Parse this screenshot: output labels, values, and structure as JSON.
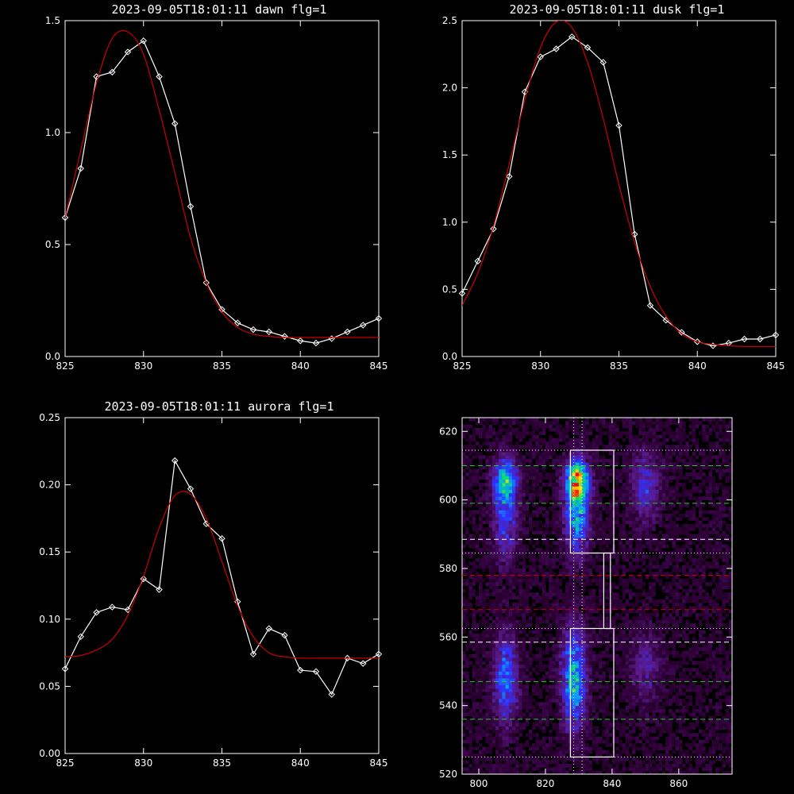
{
  "chart_data": [
    {
      "type": "line",
      "title": "2023-09-05T18:01:11 dawn flg=1",
      "xlim": [
        825,
        845
      ],
      "ylim": [
        0,
        1.5
      ],
      "xticks": [
        "825",
        "830",
        "835",
        "840",
        "845"
      ],
      "yticks": [
        "0.0",
        "0.5",
        "1.0",
        "1.5"
      ],
      "series": [
        {
          "role": "data",
          "color": "#ffffff",
          "marker": "diamond",
          "x": [
            825,
            826,
            827,
            828,
            829,
            830,
            831,
            832,
            833,
            834,
            835,
            836,
            837,
            838,
            839,
            840,
            841,
            842,
            843,
            844,
            845
          ],
          "y": [
            0.62,
            0.84,
            1.25,
            1.27,
            1.36,
            1.41,
            1.25,
            1.04,
            0.67,
            0.33,
            0.21,
            0.15,
            0.12,
            0.11,
            0.09,
            0.07,
            0.06,
            0.08,
            0.11,
            0.14,
            0.17
          ]
        },
        {
          "role": "fit",
          "color": "#cc0000",
          "x": [
            825,
            826,
            827,
            828,
            829,
            830,
            831,
            832,
            833,
            834,
            835,
            836,
            837,
            838,
            839,
            840,
            841,
            842,
            843,
            844,
            845
          ],
          "y": [
            0.62,
            0.92,
            1.22,
            1.42,
            1.45,
            1.35,
            1.1,
            0.82,
            0.53,
            0.33,
            0.2,
            0.13,
            0.1,
            0.09,
            0.085,
            0.085,
            0.085,
            0.085,
            0.085,
            0.085,
            0.085
          ]
        }
      ]
    },
    {
      "type": "line",
      "title": "2023-09-05T18:01:11 dusk flg=1",
      "xlim": [
        825,
        845
      ],
      "ylim": [
        0,
        2.5
      ],
      "xticks": [
        "825",
        "830",
        "835",
        "840",
        "845"
      ],
      "yticks": [
        "0.0",
        "0.5",
        "1.0",
        "1.5",
        "2.0",
        "2.5"
      ],
      "series": [
        {
          "role": "data",
          "color": "#ffffff",
          "marker": "diamond",
          "x": [
            825,
            826,
            827,
            828,
            829,
            830,
            831,
            832,
            833,
            834,
            835,
            836,
            837,
            838,
            839,
            840,
            841,
            842,
            843,
            844,
            845
          ],
          "y": [
            0.47,
            0.71,
            0.95,
            1.34,
            1.97,
            2.23,
            2.29,
            2.38,
            2.3,
            2.19,
            1.72,
            0.91,
            0.38,
            0.27,
            0.18,
            0.11,
            0.08,
            0.1,
            0.13,
            0.13,
            0.16
          ]
        },
        {
          "role": "fit",
          "color": "#cc0000",
          "x": [
            825,
            826,
            827,
            828,
            829,
            830,
            831,
            832,
            833,
            834,
            835,
            836,
            837,
            838,
            839,
            840,
            841,
            842,
            843,
            844,
            845
          ],
          "y": [
            0.38,
            0.62,
            0.97,
            1.43,
            1.91,
            2.3,
            2.49,
            2.45,
            2.19,
            1.77,
            1.28,
            0.85,
            0.52,
            0.3,
            0.17,
            0.11,
            0.09,
            0.08,
            0.075,
            0.075,
            0.075
          ]
        }
      ]
    },
    {
      "type": "line",
      "title": "2023-09-05T18:01:11 aurora flg=1",
      "xlim": [
        825,
        845
      ],
      "ylim": [
        0,
        0.25
      ],
      "xticks": [
        "825",
        "830",
        "835",
        "840",
        "845"
      ],
      "yticks": [
        "0.00",
        "0.05",
        "0.10",
        "0.15",
        "0.20",
        "0.25"
      ],
      "series": [
        {
          "role": "data",
          "color": "#ffffff",
          "marker": "diamond",
          "x": [
            825,
            826,
            827,
            828,
            829,
            830,
            831,
            832,
            833,
            834,
            835,
            836,
            837,
            838,
            839,
            840,
            841,
            842,
            843,
            844,
            845
          ],
          "y": [
            0.063,
            0.087,
            0.105,
            0.109,
            0.107,
            0.13,
            0.122,
            0.218,
            0.197,
            0.171,
            0.16,
            0.113,
            0.074,
            0.093,
            0.088,
            0.062,
            0.061,
            0.044,
            0.071,
            0.067,
            0.074
          ]
        },
        {
          "role": "fit",
          "color": "#cc0000",
          "x": [
            825,
            826,
            827,
            828,
            829,
            830,
            831,
            832,
            833,
            834,
            835,
            836,
            837,
            838,
            839,
            840,
            841,
            842,
            843,
            844,
            845
          ],
          "y": [
            0.072,
            0.073,
            0.077,
            0.085,
            0.103,
            0.132,
            0.168,
            0.192,
            0.193,
            0.175,
            0.143,
            0.11,
            0.087,
            0.075,
            0.072,
            0.071,
            0.071,
            0.071,
            0.071,
            0.071,
            0.071
          ]
        }
      ]
    },
    {
      "type": "heatmap",
      "title": "",
      "xlim": [
        795,
        876
      ],
      "ylim": [
        520,
        624
      ],
      "xticks": [
        "800",
        "820",
        "840",
        "860"
      ],
      "yticks": [
        "520",
        "540",
        "560",
        "580",
        "600",
        "620"
      ],
      "colormap": [
        "#000000",
        "#300038",
        "#5a1a8a",
        "#3030ff",
        "#0a9aff",
        "#00dd77",
        "#ffee00",
        "#ff0000"
      ],
      "blobs": [
        {
          "x": 829.5,
          "y": 606,
          "sx": 2.5,
          "sy": 4,
          "amp": 0.65
        },
        {
          "x": 829.5,
          "y": 596,
          "sx": 2.5,
          "sy": 8,
          "amp": 0.55
        },
        {
          "x": 828.5,
          "y": 548,
          "sx": 2.5,
          "sy": 10,
          "amp": 0.55
        },
        {
          "x": 808,
          "y": 606,
          "sx": 2.5,
          "sy": 4,
          "amp": 0.45
        },
        {
          "x": 808,
          "y": 596,
          "sx": 2.5,
          "sy": 9,
          "amp": 0.35
        },
        {
          "x": 808,
          "y": 548,
          "sx": 2.5,
          "sy": 9,
          "amp": 0.4
        },
        {
          "x": 850,
          "y": 604,
          "sx": 3,
          "sy": 7,
          "amp": 0.28
        },
        {
          "x": 850,
          "y": 551,
          "sx": 3,
          "sy": 7,
          "amp": 0.2
        }
      ],
      "h_lines": [
        {
          "y": 614.5,
          "color": "#ffffff",
          "style": "dotted"
        },
        {
          "y": 610,
          "color": "#22cc22",
          "style": "dashed"
        },
        {
          "y": 599,
          "color": "#22cc22",
          "style": "dashed"
        },
        {
          "y": 588.5,
          "color": "#ffffff",
          "style": "dashed"
        },
        {
          "y": 584.5,
          "color": "#ffffff",
          "style": "dotted"
        },
        {
          "y": 578,
          "color": "#cc0000",
          "style": "dashed"
        },
        {
          "y": 568,
          "color": "#cc0000",
          "style": "dashed"
        },
        {
          "y": 562.5,
          "color": "#ffffff",
          "style": "dotted"
        },
        {
          "y": 558.5,
          "color": "#ffffff",
          "style": "dashed"
        },
        {
          "y": 547,
          "color": "#22cc22",
          "style": "dashed"
        },
        {
          "y": 536,
          "color": "#22cc22",
          "style": "dashed"
        },
        {
          "y": 525,
          "color": "#ffffff",
          "style": "dotted"
        }
      ],
      "v_lines": [
        {
          "x": 828.5,
          "color": "#ffffff",
          "style": "dotted"
        },
        {
          "x": 831,
          "color": "#ffffff",
          "style": "dotted"
        }
      ],
      "boxes": [
        {
          "x0": 827.5,
          "x1": 840.5,
          "y0": 584.5,
          "y1": 614.5
        },
        {
          "x0": 837.5,
          "x1": 839.5,
          "y0": 562.5,
          "y1": 584.5
        },
        {
          "x0": 827.5,
          "x1": 840.5,
          "y0": 525,
          "y1": 562.5
        }
      ]
    }
  ]
}
